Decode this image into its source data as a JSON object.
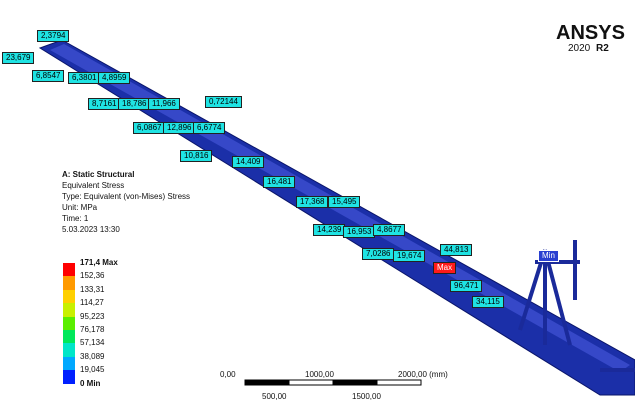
{
  "logo": {
    "brand": "ANSYS",
    "version": "2020",
    "release": "R2"
  },
  "info": {
    "title": "A: Static Structural",
    "lines": [
      "Equivalent Stress",
      "Type: Equivalent (von-Mises) Stress",
      "Unit: MPa",
      "Time: 1",
      "5.03.2023 13:30"
    ]
  },
  "legend": {
    "labels": [
      "171,4 Max",
      "152,36",
      "133,31",
      "114,27",
      "95,223",
      "76,178",
      "57,134",
      "38,089",
      "19,045",
      "0 Min"
    ],
    "colors": [
      "#ff0000",
      "#ff9a00",
      "#ffd000",
      "#c8f000",
      "#5aee00",
      "#00e85a",
      "#00e6c8",
      "#00a8ff",
      "#0020ff"
    ]
  },
  "probes": [
    "2,3794",
    "23,679",
    "6,8547",
    "6,3801",
    "4,8959",
    "8,7161",
    "18,786",
    "11,966",
    "0,72144",
    "6,0867",
    "12,896",
    "6,6774",
    "10,816",
    "14,409",
    "16,481",
    "17,368",
    "15,495",
    "14,239",
    "16,953",
    "4,8677",
    "7,0286",
    "19,674",
    "44,813",
    "96,471",
    "34,115"
  ],
  "markers": {
    "max": "Max",
    "min": "Min"
  },
  "scale": {
    "top": [
      "0,00",
      "1000,00",
      "2000,00 (mm)"
    ],
    "bottom": [
      "500,00",
      "1500,00"
    ]
  }
}
